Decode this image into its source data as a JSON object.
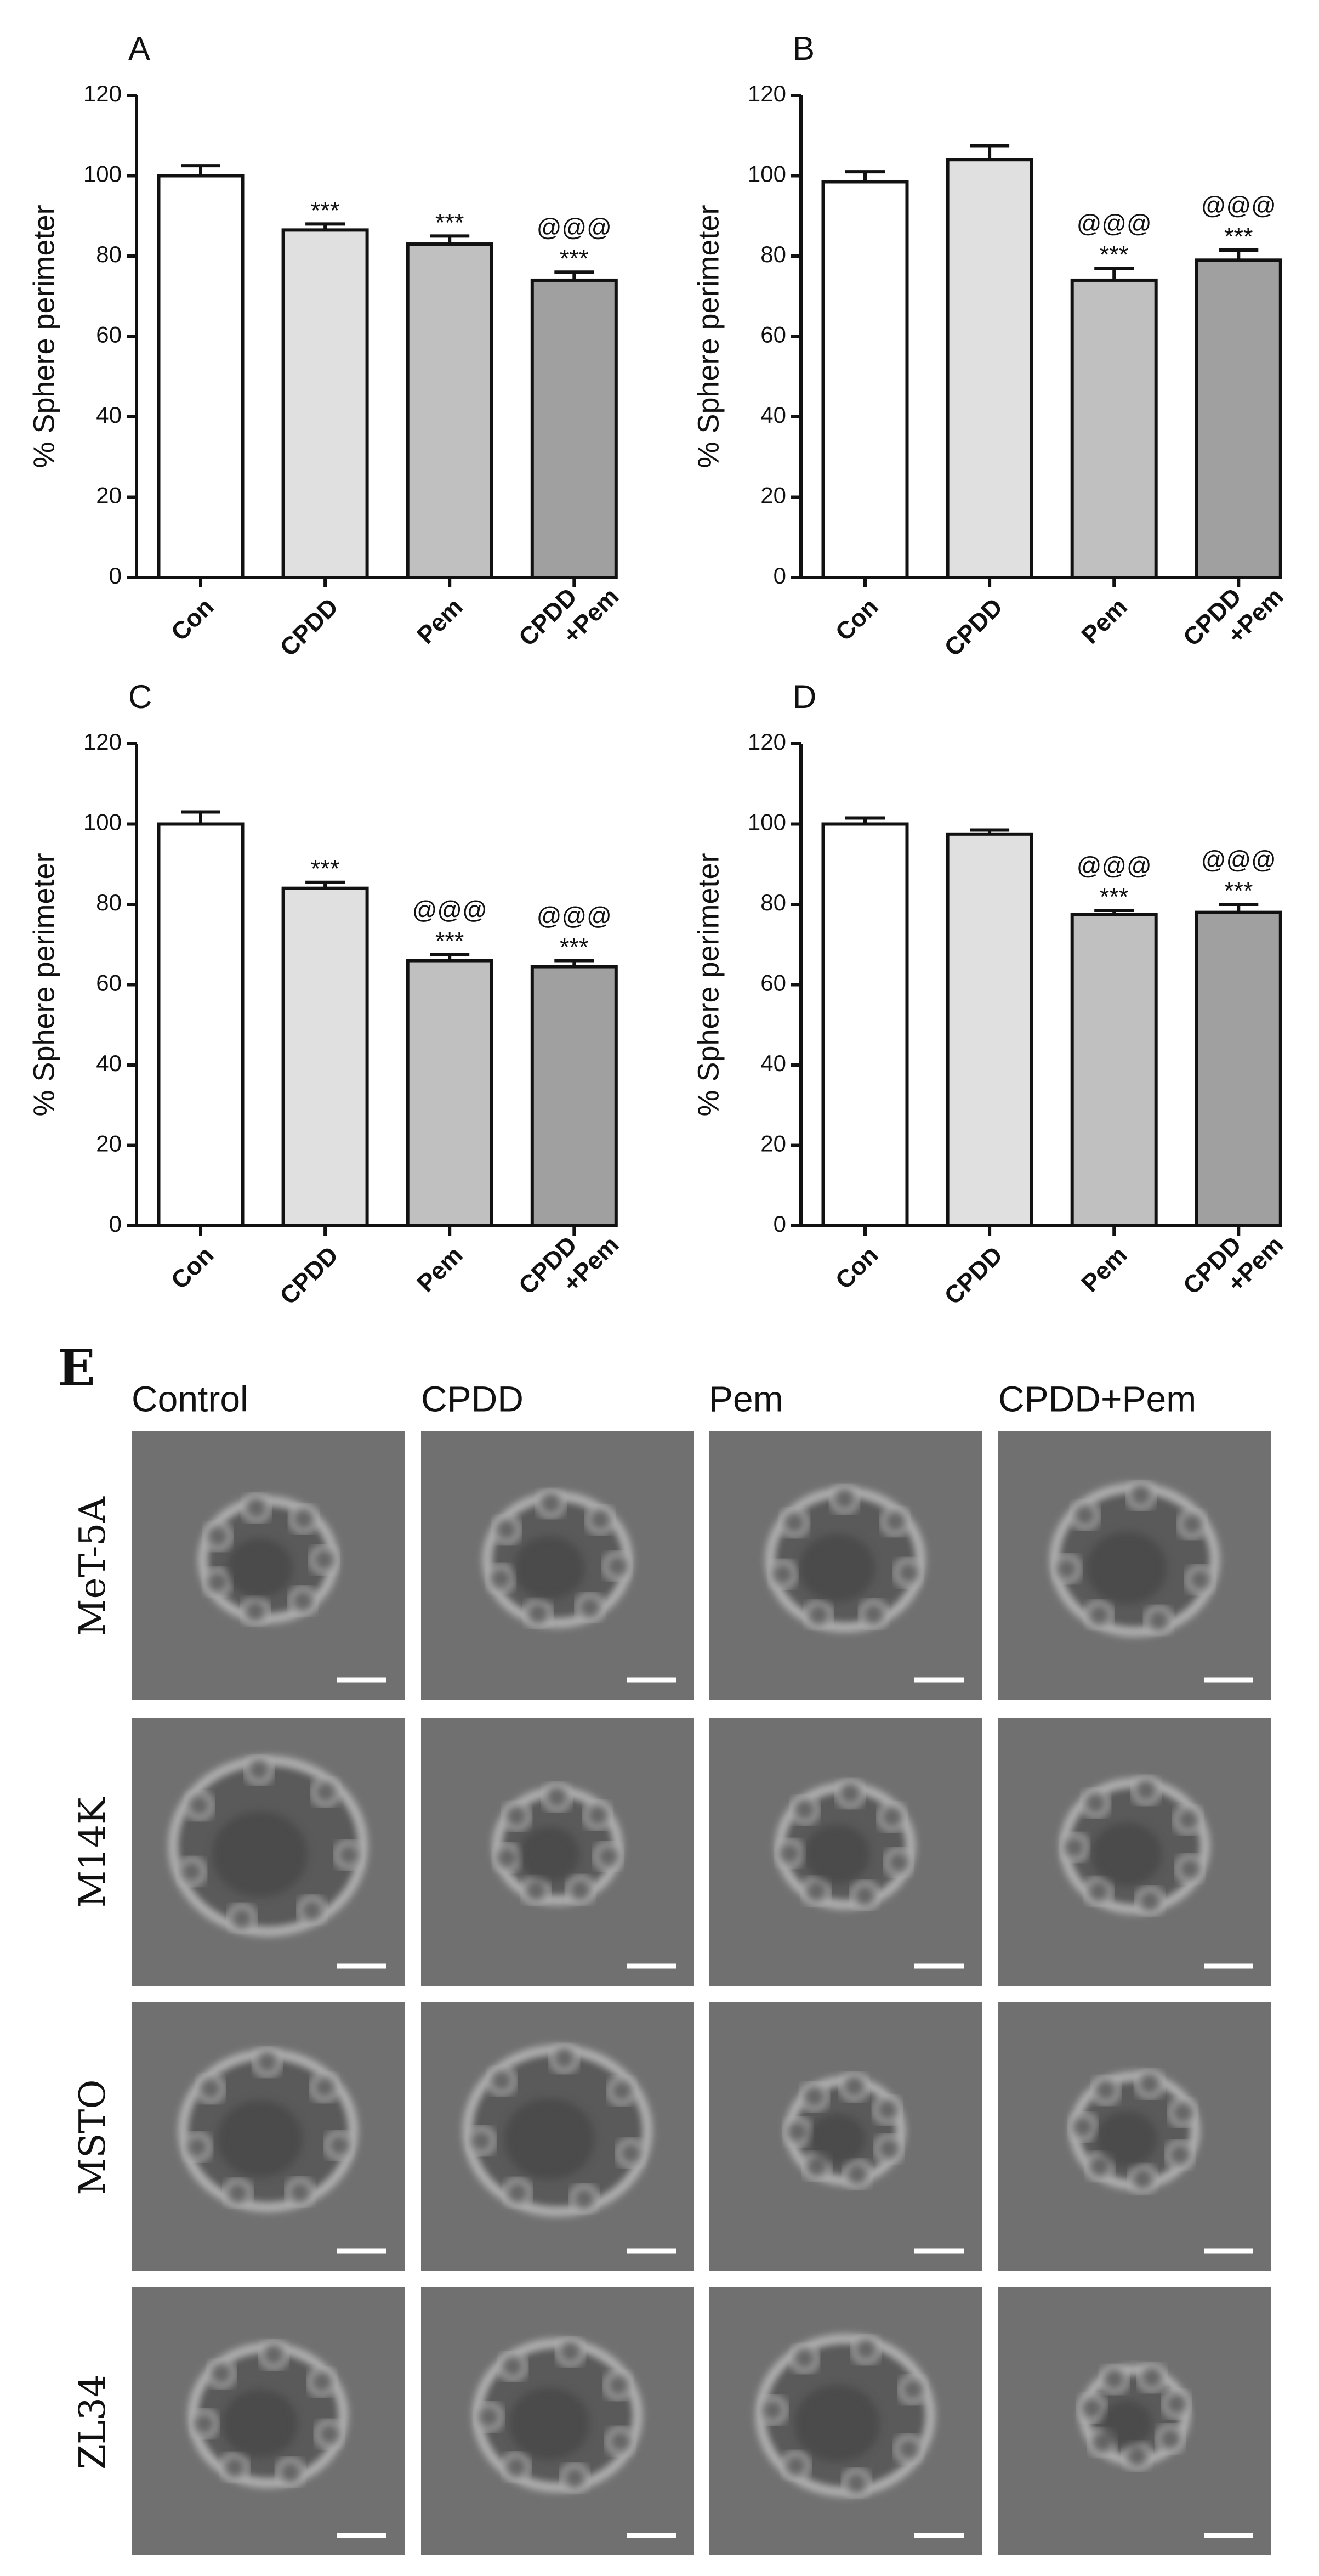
{
  "chart_data": [
    {
      "type": "bar",
      "panel": "A",
      "ylabel": "% Sphere perimeter",
      "categories": [
        "Con",
        "CPDD",
        "Pem",
        "CPDD +Pem"
      ],
      "values": [
        100,
        86.5,
        83,
        74
      ],
      "errors": [
        2.5,
        1.5,
        2,
        2
      ],
      "colors": [
        "#ffffff",
        "#e0e0e0",
        "#c0c0c0",
        "#a0a0a0"
      ],
      "labels_upper": [
        null,
        null,
        null,
        "@@@"
      ],
      "labels_lower": [
        null,
        "***",
        "***",
        "***"
      ],
      "ylim": [
        0,
        120
      ],
      "yticks": [
        0,
        20,
        40,
        60,
        80,
        100,
        120
      ]
    },
    {
      "type": "bar",
      "panel": "B",
      "ylabel": "% Sphere perimeter",
      "categories": [
        "Con",
        "CPDD",
        "Pem",
        "CPDD +Pem"
      ],
      "values": [
        98.5,
        104,
        74,
        79
      ],
      "errors": [
        2.5,
        3.5,
        3,
        2.5
      ],
      "colors": [
        "#ffffff",
        "#e0e0e0",
        "#c0c0c0",
        "#a0a0a0"
      ],
      "labels_upper": [
        null,
        null,
        "@@@",
        "@@@"
      ],
      "labels_lower": [
        null,
        null,
        "***",
        "***"
      ],
      "ylim": [
        0,
        120
      ],
      "yticks": [
        0,
        20,
        40,
        60,
        80,
        100,
        120
      ]
    },
    {
      "type": "bar",
      "panel": "C",
      "ylabel": "% Sphere perimeter",
      "categories": [
        "Con",
        "CPDD",
        "Pem",
        "CPDD +Pem"
      ],
      "values": [
        100,
        84,
        66,
        64.5
      ],
      "errors": [
        3,
        1.5,
        1.5,
        1.5
      ],
      "colors": [
        "#ffffff",
        "#e0e0e0",
        "#c0c0c0",
        "#a0a0a0"
      ],
      "labels_upper": [
        null,
        null,
        "@@@",
        "@@@"
      ],
      "labels_lower": [
        null,
        "***",
        "***",
        "***"
      ],
      "ylim": [
        0,
        120
      ],
      "yticks": [
        0,
        20,
        40,
        60,
        80,
        100,
        120
      ]
    },
    {
      "type": "bar",
      "panel": "D",
      "ylabel": "% Sphere perimeter",
      "categories": [
        "Con",
        "CPDD",
        "Pem",
        "CPDD +Pem"
      ],
      "values": [
        100,
        97.5,
        77.5,
        78
      ],
      "errors": [
        1.5,
        1,
        1,
        2
      ],
      "colors": [
        "#ffffff",
        "#e0e0e0",
        "#c0c0c0",
        "#a0a0a0"
      ],
      "labels_upper": [
        null,
        null,
        "@@@",
        "@@@"
      ],
      "labels_lower": [
        null,
        null,
        "***",
        "***"
      ],
      "ylim": [
        0,
        120
      ],
      "yticks": [
        0,
        20,
        40,
        60,
        80,
        100,
        120
      ]
    }
  ],
  "panel_e": {
    "label": "E",
    "columns": [
      "Control",
      "CPDD",
      "Pem",
      "CPDD+Pem"
    ],
    "rows": [
      "MeT-5A",
      "M14K",
      "MSTO",
      "ZL34"
    ]
  }
}
